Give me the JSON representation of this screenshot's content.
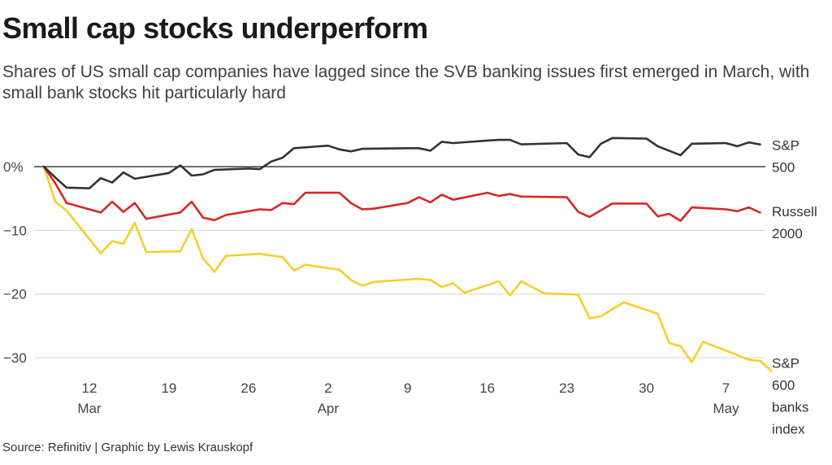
{
  "title": "Small cap stocks underperform",
  "subtitle": "Shares of US small cap companies have lagged since the SVB banking issues first emerged in March, with small bank stocks hit particularly hard",
  "source": "Source: Refinitiv | Graphic by Lewis Krauskopf",
  "chart_data": {
    "type": "line",
    "title": "Small cap stocks underperform",
    "xlabel": "",
    "ylabel": "",
    "ylim": [
      -32,
      5
    ],
    "yticks": [
      {
        "value": 0,
        "label": "0%"
      },
      {
        "value": -10,
        "label": "−10"
      },
      {
        "value": -20,
        "label": "−20"
      },
      {
        "value": -30,
        "label": "−30"
      }
    ],
    "xticks": [
      {
        "day": 4,
        "label": "12"
      },
      {
        "day": 11,
        "label": "19"
      },
      {
        "day": 18,
        "label": "26"
      },
      {
        "day": 25,
        "label": "2"
      },
      {
        "day": 32,
        "label": "9"
      },
      {
        "day": 39,
        "label": "16"
      },
      {
        "day": 46,
        "label": "23"
      },
      {
        "day": 53,
        "label": "30"
      },
      {
        "day": 60,
        "label": "7"
      }
    ],
    "months": [
      {
        "day": 4,
        "label": "Mar"
      },
      {
        "day": 25,
        "label": "Apr"
      },
      {
        "day": 60,
        "label": "May"
      }
    ],
    "xlim": [
      -4,
      63
    ],
    "zero_line": true,
    "grid": "horizontal",
    "series": [
      {
        "name": "S&P 500",
        "label_lines": [
          "S&P",
          "500"
        ],
        "color": "#333333",
        "points": [
          [
            0,
            0
          ],
          [
            1,
            -1.7
          ],
          [
            2,
            -3.3
          ],
          [
            4,
            -3.4
          ],
          [
            5,
            -1.8
          ],
          [
            6,
            -2.5
          ],
          [
            7,
            -0.9
          ],
          [
            8,
            -1.9
          ],
          [
            11,
            -1.0
          ],
          [
            12,
            0.2
          ],
          [
            13,
            -1.4
          ],
          [
            14,
            -1.2
          ],
          [
            15,
            -0.5
          ],
          [
            18,
            -0.3
          ],
          [
            19,
            -0.4
          ],
          [
            20,
            0.8
          ],
          [
            21,
            1.4
          ],
          [
            22,
            2.9
          ],
          [
            25,
            3.3
          ],
          [
            26,
            2.7
          ],
          [
            27,
            2.4
          ],
          [
            28,
            2.8
          ],
          [
            32,
            2.9
          ],
          [
            33,
            2.9
          ],
          [
            34,
            2.5
          ],
          [
            35,
            3.9
          ],
          [
            36,
            3.7
          ],
          [
            39,
            4.1
          ],
          [
            40,
            4.2
          ],
          [
            41,
            4.2
          ],
          [
            42,
            3.5
          ],
          [
            46,
            3.7
          ],
          [
            47,
            1.9
          ],
          [
            48,
            1.5
          ],
          [
            49,
            3.6
          ],
          [
            50,
            4.5
          ],
          [
            53,
            4.4
          ],
          [
            54,
            3.2
          ],
          [
            56,
            1.8
          ],
          [
            57,
            3.6
          ],
          [
            60,
            3.7
          ],
          [
            61,
            3.2
          ],
          [
            62,
            3.8
          ],
          [
            63,
            3.5
          ]
        ]
      },
      {
        "name": "Russell 2000",
        "label_lines": [
          "Russell",
          "2000"
        ],
        "color": "#d62828",
        "points": [
          [
            0,
            0
          ],
          [
            1,
            -2.6
          ],
          [
            2,
            -5.7
          ],
          [
            5,
            -7.2
          ],
          [
            6,
            -5.5
          ],
          [
            7,
            -7.1
          ],
          [
            8,
            -5.7
          ],
          [
            9,
            -8.2
          ],
          [
            12,
            -7.2
          ],
          [
            13,
            -5.5
          ],
          [
            14,
            -8.0
          ],
          [
            15,
            -8.4
          ],
          [
            16,
            -7.6
          ],
          [
            19,
            -6.7
          ],
          [
            20,
            -6.8
          ],
          [
            21,
            -5.7
          ],
          [
            22,
            -5.9
          ],
          [
            23,
            -4.1
          ],
          [
            26,
            -4.1
          ],
          [
            27,
            -5.7
          ],
          [
            28,
            -6.7
          ],
          [
            29,
            -6.6
          ],
          [
            32,
            -5.7
          ],
          [
            33,
            -4.8
          ],
          [
            34,
            -5.6
          ],
          [
            35,
            -4.4
          ],
          [
            36,
            -5.2
          ],
          [
            39,
            -4.1
          ],
          [
            40,
            -4.6
          ],
          [
            41,
            -4.3
          ],
          [
            42,
            -4.7
          ],
          [
            46,
            -4.8
          ],
          [
            47,
            -7.1
          ],
          [
            48,
            -7.9
          ],
          [
            50,
            -5.8
          ],
          [
            53,
            -5.8
          ],
          [
            54,
            -7.8
          ],
          [
            55,
            -7.4
          ],
          [
            56,
            -8.5
          ],
          [
            57,
            -6.4
          ],
          [
            60,
            -6.7
          ],
          [
            61,
            -7.0
          ],
          [
            62,
            -6.4
          ],
          [
            63,
            -7.2
          ]
        ]
      },
      {
        "name": "S&P 600 banks index",
        "label_lines": [
          "S&P",
          "600",
          "banks",
          "index"
        ],
        "color": "#f5cf2c",
        "points": [
          [
            0,
            0
          ],
          [
            1,
            -5.5
          ],
          [
            2,
            -6.9
          ],
          [
            5,
            -13.6
          ],
          [
            6,
            -11.7
          ],
          [
            7,
            -12.1
          ],
          [
            8,
            -8.8
          ],
          [
            9,
            -13.4
          ],
          [
            12,
            -13.3
          ],
          [
            13,
            -9.8
          ],
          [
            14,
            -14.4
          ],
          [
            15,
            -16.5
          ],
          [
            16,
            -14.0
          ],
          [
            19,
            -13.7
          ],
          [
            21,
            -14.2
          ],
          [
            22,
            -16.3
          ],
          [
            23,
            -15.4
          ],
          [
            26,
            -16.2
          ],
          [
            27,
            -17.8
          ],
          [
            28,
            -18.7
          ],
          [
            29,
            -18.1
          ],
          [
            33,
            -17.6
          ],
          [
            34,
            -17.8
          ],
          [
            35,
            -18.9
          ],
          [
            36,
            -18.3
          ],
          [
            37,
            -19.8
          ],
          [
            40,
            -18.0
          ],
          [
            41,
            -20.2
          ],
          [
            42,
            -18.0
          ],
          [
            44,
            -19.9
          ],
          [
            47,
            -20.1
          ],
          [
            48,
            -23.8
          ],
          [
            49,
            -23.5
          ],
          [
            51,
            -21.3
          ],
          [
            54,
            -23.1
          ],
          [
            55,
            -27.7
          ],
          [
            56,
            -28.2
          ],
          [
            57,
            -30.7
          ],
          [
            58,
            -27.5
          ],
          [
            62,
            -30.3
          ],
          [
            63,
            -30.5
          ],
          [
            64,
            -32.1
          ]
        ]
      }
    ]
  }
}
